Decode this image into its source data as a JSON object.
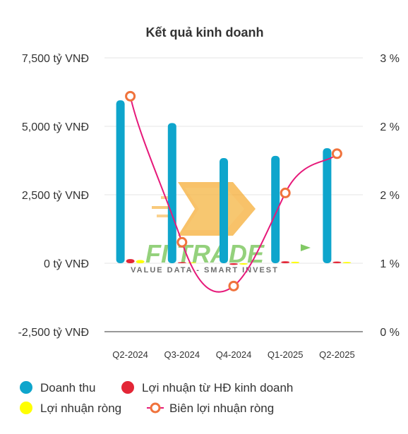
{
  "chart_data": {
    "type": "bar",
    "title": "Kết quả kinh doanh",
    "categories": [
      "Q2-2024",
      "Q3-2024",
      "Q4-2024",
      "Q1-2025",
      "Q2-2025"
    ],
    "y_left": {
      "min": -2500,
      "max": 7500,
      "ticks": [
        -2500,
        0,
        2500,
        5000,
        7500
      ],
      "tick_labels": [
        "-2,500 tỷ VNĐ",
        "0 tỷ VNĐ",
        "2,500 tỷ VNĐ",
        "5,000 tỷ VNĐ",
        "7,500 tỷ VNĐ"
      ]
    },
    "y_right": {
      "min": 0,
      "max": 3,
      "ticks": [
        0,
        0.75,
        1.5,
        2.25,
        3
      ],
      "tick_labels": [
        "0 %",
        "1 %",
        "2 %",
        "2 %",
        "3 %"
      ]
    },
    "series": [
      {
        "name": "Doanh thu",
        "type": "bar",
        "axis": "left",
        "color": "#0ea5cc",
        "values": [
          5950,
          5120,
          3840,
          3920,
          4200
        ]
      },
      {
        "name": "Lợi nhuận từ HĐ kinh doanh",
        "type": "bar",
        "axis": "left",
        "color": "#e32636",
        "values": [
          150,
          40,
          -60,
          70,
          60
        ]
      },
      {
        "name": "Lợi nhuận ròng",
        "type": "bar",
        "axis": "left",
        "color": "#ffff00",
        "values": [
          115,
          30,
          -50,
          55,
          45
        ]
      },
      {
        "name": "Biên lợi nhuận ròng",
        "type": "line",
        "axis": "right",
        "color": "#e6197a",
        "marker_color": "#f0733c",
        "values": [
          2.58,
          0.98,
          0.5,
          1.52,
          1.95
        ]
      }
    ],
    "grid": "horizontal",
    "legend": "bottom"
  },
  "watermark": {
    "brand": "FI-TRADE",
    "tagline": "VALUE DATA - SMART INVEST",
    "colors": {
      "brand": "#6cc04a",
      "arrow": "#f5a623"
    }
  }
}
